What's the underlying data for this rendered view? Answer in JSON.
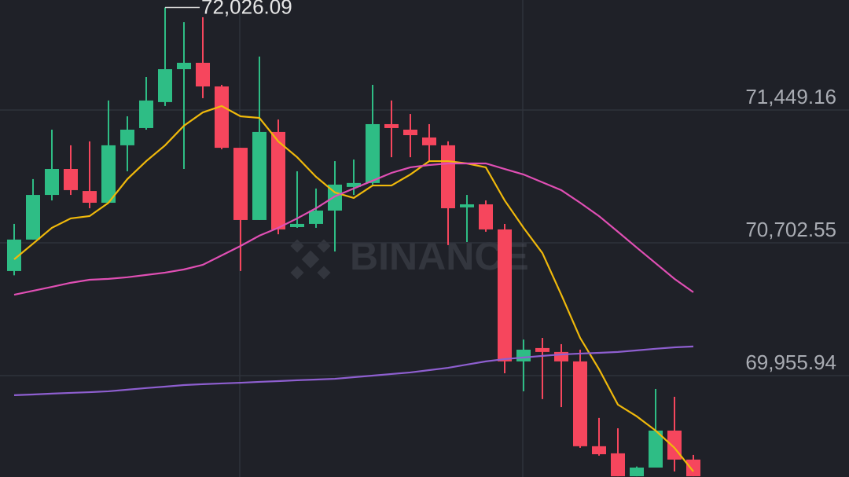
{
  "chart_data": {
    "type": "candlestick",
    "watermark": "BINANCE",
    "max_label": "72,026.09",
    "up_color": "#2ebd85",
    "down_color": "#f6465d",
    "ylim": [
      69386,
      72068
    ],
    "yticks": [
      {
        "value": 71449.16,
        "label": "71,449.16"
      },
      {
        "value": 70702.55,
        "label": "70,702.55"
      },
      {
        "value": 69955.94,
        "label": "69,955.94"
      }
    ],
    "grid": true,
    "open": [
      70544,
      70721,
      70972,
      71118,
      70994,
      70928,
      71251,
      71348,
      71494,
      71679,
      71715,
      71582,
      71237,
      70831,
      71326,
      70791,
      70809,
      70884,
      71017,
      71039,
      71370,
      71339,
      71295,
      71251,
      70902,
      70919,
      70778,
      70036,
      70111,
      70089,
      70036,
      69559,
      69519,
      69390,
      69439,
      69647,
      69484
    ],
    "high": [
      70809,
      71061,
      71339,
      71251,
      71273,
      71503,
      71414,
      71635,
      72026.09,
      71944,
      71971,
      71591,
      71237,
      71750,
      71396,
      71105,
      71008,
      71162,
      71171,
      71591,
      71503,
      71427,
      71370,
      71273,
      70972,
      70941,
      70809,
      70159,
      70168,
      70133,
      70102,
      69718,
      69660,
      69445,
      69881,
      69837,
      69510
    ],
    "low": [
      70520,
      70721,
      70941,
      70972,
      70897,
      70928,
      71105,
      71339,
      71472,
      71118,
      71516,
      71229,
      70544,
      70831,
      70751,
      70787,
      70787,
      70654,
      70972,
      71030,
      71184,
      71184,
      71162,
      70690,
      70707,
      70765,
      69969,
      69868,
      69824,
      69779,
      69550,
      69506,
      69390,
      69390,
      69439,
      69417,
      69390
    ],
    "close": [
      70721,
      70972,
      71118,
      70999,
      70928,
      71251,
      71339,
      71503,
      71679,
      71715,
      71582,
      71237,
      70831,
      71326,
      70778,
      70809,
      70884,
      71030,
      71039,
      71370,
      71348,
      71308,
      71251,
      70897,
      70919,
      70778,
      70036,
      70102,
      70089,
      70036,
      69559,
      69514,
      69390,
      69439,
      69647,
      69484,
      69390
    ],
    "series": [
      {
        "color": "#f0b90b",
        "values": [
          70610,
          70698,
          70787,
          70840,
          70853,
          70928,
          71061,
          71162,
          71251,
          71361,
          71436,
          71472,
          71414,
          71405,
          71273,
          71184,
          71074,
          70986,
          70955,
          71025,
          71025,
          71087,
          71162,
          71162,
          71149,
          71127,
          70941,
          70787,
          70645,
          70411,
          70168,
          69992,
          69793,
          69727,
          69647,
          69550,
          69417
        ]
      },
      {
        "color": "#e04fb4",
        "values": [
          70411,
          70433,
          70455,
          70478,
          70495,
          70500,
          70509,
          70522,
          70535,
          70553,
          70579,
          70632,
          70685,
          70743,
          70787,
          70840,
          70897,
          70964,
          71008,
          71052,
          71096,
          71127,
          71140,
          71149,
          71149,
          71149,
          71118,
          71087,
          71043,
          70999,
          70928,
          70853,
          70765,
          70676,
          70588,
          70500,
          70425
        ]
      },
      {
        "color": "#8e5fd0",
        "values": [
          69846,
          69850,
          69855,
          69859,
          69863,
          69868,
          69877,
          69886,
          69894,
          69903,
          69908,
          69912,
          69916,
          69921,
          69925,
          69930,
          69934,
          69938,
          69947,
          69956,
          69965,
          69974,
          69987,
          70000,
          70018,
          70036,
          70049,
          70058,
          70067,
          70075,
          70080,
          70084,
          70089,
          70098,
          70107,
          70115,
          70120
        ]
      }
    ]
  }
}
